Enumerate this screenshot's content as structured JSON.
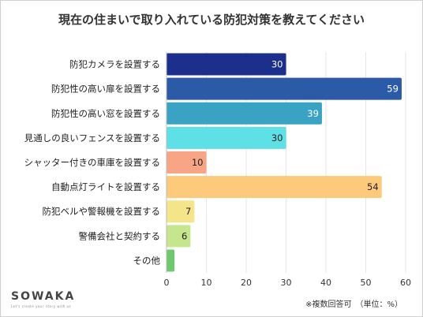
{
  "chart_data": {
    "type": "bar",
    "orientation": "horizontal",
    "title": "現在の住まいで取り入れている防犯対策を教えてください",
    "categories": [
      "防犯カメラを設置する",
      "防犯性の高い扉を設置する",
      "防犯性の高い窓を設置する",
      "見通しの良いフェンスを設置する",
      "シャッター付きの車庫を設置する",
      "自動点灯ライトを設置する",
      "防犯ベルや警報機を設置する",
      "警備会社と契約する",
      "その他"
    ],
    "values": [
      30,
      59,
      39,
      30,
      10,
      54,
      7,
      6,
      2
    ],
    "data_labels": [
      "30",
      "59",
      "39",
      "30",
      "10",
      "54",
      "7",
      "6",
      ""
    ],
    "colors": [
      "#1c2f8c",
      "#2b5ba6",
      "#3aa3c4",
      "#5ee0e6",
      "#f7a584",
      "#fdc97a",
      "#f5e58a",
      "#c5e68c",
      "#6ec86e"
    ],
    "xlim": [
      0,
      60
    ],
    "xticks": [
      "0",
      "10",
      "20",
      "30",
      "40",
      "50",
      "60"
    ],
    "grid": true,
    "legend": "none"
  },
  "footer": {
    "logo": "SOWAKA",
    "tagline": "Let's create your story with us",
    "note": "※複数回答可　（単位：%）"
  }
}
